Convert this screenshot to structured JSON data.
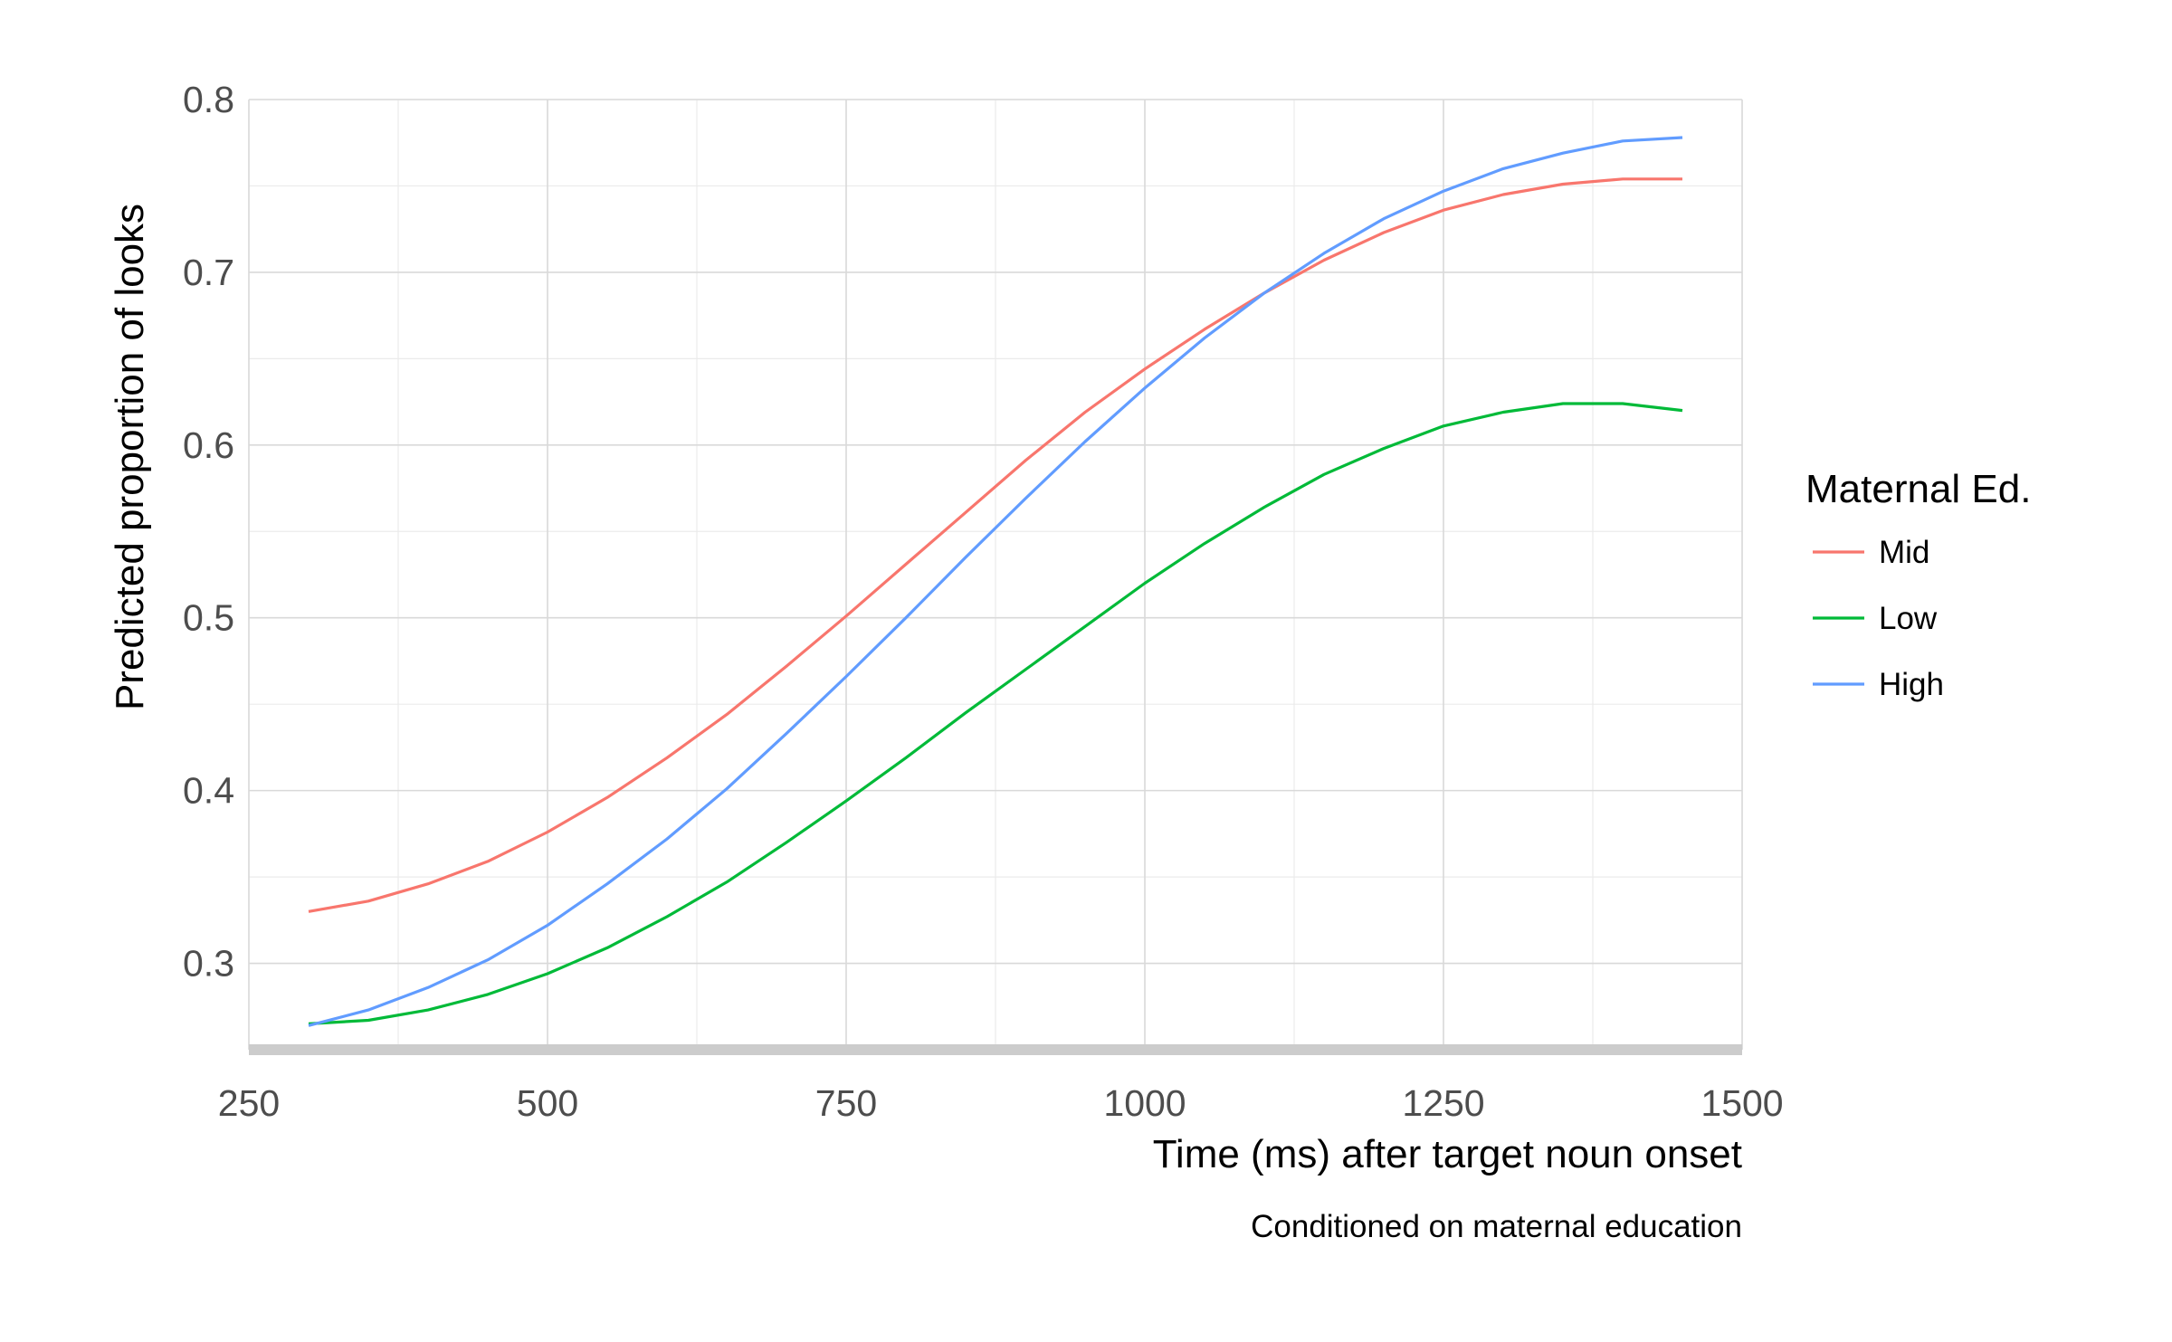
{
  "chart_data": {
    "type": "line",
    "xlabel": "Time (ms) after target noun onset",
    "ylabel": "Predicted proportion of looks",
    "caption": "Conditioned on maternal education",
    "xlim": [
      250,
      1500
    ],
    "ylim": [
      0.25,
      0.8
    ],
    "x_ticks": [
      250,
      500,
      750,
      1000,
      1250,
      1500
    ],
    "y_ticks": [
      0.3,
      0.4,
      0.5,
      0.6,
      0.7,
      0.8
    ],
    "x_tick_labels": [
      "250",
      "500",
      "750",
      "1000",
      "1250",
      "1500"
    ],
    "y_tick_labels": [
      "0.3",
      "0.4",
      "0.5",
      "0.6",
      "0.7",
      "0.8"
    ],
    "grid": true,
    "legend": {
      "title": "Maternal Ed.",
      "position": "right"
    },
    "x": [
      300,
      350,
      400,
      450,
      500,
      550,
      600,
      650,
      700,
      750,
      800,
      850,
      900,
      950,
      1000,
      1050,
      1100,
      1150,
      1200,
      1250,
      1300,
      1350,
      1400,
      1450
    ],
    "series": [
      {
        "name": "Mid",
        "color": "#F8766D",
        "values": [
          0.33,
          0.336,
          0.346,
          0.359,
          0.376,
          0.396,
          0.419,
          0.444,
          0.472,
          0.501,
          0.531,
          0.561,
          0.591,
          0.619,
          0.644,
          0.667,
          0.688,
          0.707,
          0.723,
          0.736,
          0.745,
          0.751,
          0.754,
          0.754
        ]
      },
      {
        "name": "Low",
        "color": "#00BA38",
        "values": [
          0.265,
          0.267,
          0.273,
          0.282,
          0.294,
          0.309,
          0.327,
          0.347,
          0.37,
          0.394,
          0.419,
          0.445,
          0.47,
          0.495,
          0.52,
          0.543,
          0.564,
          0.583,
          0.598,
          0.611,
          0.619,
          0.624,
          0.624,
          0.62
        ]
      },
      {
        "name": "High",
        "color": "#619CFF",
        "values": [
          0.264,
          0.273,
          0.286,
          0.302,
          0.322,
          0.346,
          0.372,
          0.401,
          0.433,
          0.466,
          0.5,
          0.535,
          0.569,
          0.602,
          0.633,
          0.662,
          0.688,
          0.711,
          0.731,
          0.747,
          0.76,
          0.769,
          0.776,
          0.778
        ]
      }
    ]
  }
}
